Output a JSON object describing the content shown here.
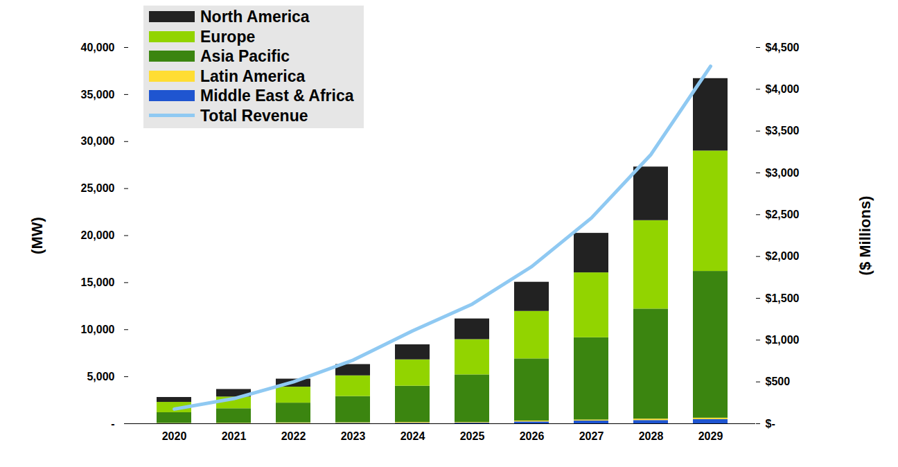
{
  "chart_data": {
    "type": "bar",
    "stacked": true,
    "legend": "upper left",
    "categories": [
      "2020",
      "2021",
      "2022",
      "2023",
      "2024",
      "2025",
      "2026",
      "2027",
      "2028",
      "2029"
    ],
    "y_label": "(MW)",
    "y2_label": "($ Millions)",
    "ylim": [
      0,
      40000
    ],
    "yticks": [
      {
        "value": 0,
        "label": "-"
      },
      {
        "value": 5000,
        "label": "5,000"
      },
      {
        "value": 10000,
        "label": "10,000"
      },
      {
        "value": 15000,
        "label": "15,000"
      },
      {
        "value": 20000,
        "label": "20,000"
      },
      {
        "value": 25000,
        "label": "25,000"
      },
      {
        "value": 30000,
        "label": "30,000"
      },
      {
        "value": 35000,
        "label": "35,000"
      },
      {
        "value": 40000,
        "label": "40,000"
      }
    ],
    "y2lim": [
      0,
      4500
    ],
    "y2ticks": [
      {
        "value": 0,
        "label": "$-"
      },
      {
        "value": 500,
        "label": "$500"
      },
      {
        "value": 1000,
        "label": "$1,000"
      },
      {
        "value": 1500,
        "label": "$1,500"
      },
      {
        "value": 2000,
        "label": "$2,000"
      },
      {
        "value": 2500,
        "label": "$2,500"
      },
      {
        "value": 3000,
        "label": "$3,000"
      },
      {
        "value": 3500,
        "label": "$3,500"
      },
      {
        "value": 4000,
        "label": "$4,000"
      },
      {
        "value": 4500,
        "label": "$4,500"
      }
    ],
    "series": [
      {
        "name": "North America",
        "type": "bar",
        "color": "#222222",
        "values": [
          520,
          800,
          850,
          1200,
          1600,
          2200,
          3100,
          4200,
          5700,
          7700
        ]
      },
      {
        "name": "Europe",
        "type": "bar",
        "color": "#92d400",
        "values": [
          1100,
          1250,
          1700,
          2200,
          2800,
          3750,
          5050,
          6900,
          9400,
          12800
        ]
      },
      {
        "name": "Asia Pacific",
        "type": "bar",
        "color": "#3b8510",
        "values": [
          1130,
          1540,
          2100,
          2780,
          3850,
          5050,
          6600,
          8750,
          11700,
          15600
        ]
      },
      {
        "name": "Latin America",
        "type": "bar",
        "color": "#ffdd33",
        "values": [
          30,
          40,
          70,
          70,
          90,
          70,
          100,
          100,
          150,
          150
        ]
      },
      {
        "name": "Middle East & Africa",
        "type": "bar",
        "color": "#1f55d0",
        "values": [
          20,
          20,
          30,
          50,
          60,
          80,
          200,
          300,
          350,
          450
        ]
      },
      {
        "name": "Total Revenue",
        "type": "line",
        "axis": "y2",
        "color": "#8fc9f2",
        "values": [
          175,
          300,
          500,
          760,
          1110,
          1430,
          1880,
          2460,
          3220,
          4275
        ]
      }
    ]
  }
}
